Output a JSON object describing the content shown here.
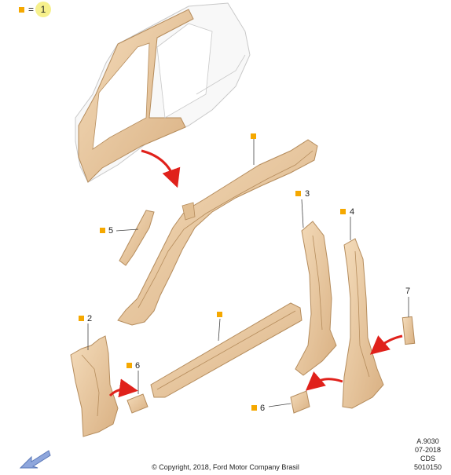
{
  "legend": {
    "equals": "=",
    "qty": "1"
  },
  "callouts": [
    {
      "id": "c1",
      "num": ""
    },
    {
      "id": "c2",
      "num": "2"
    },
    {
      "id": "c3",
      "num": "3"
    },
    {
      "id": "c4",
      "num": "4"
    },
    {
      "id": "c5",
      "num": "5"
    },
    {
      "id": "c6a",
      "num": "6"
    },
    {
      "id": "c6b",
      "num": "6"
    },
    {
      "id": "c7",
      "num": "7"
    },
    {
      "id": "c8",
      "num": ""
    }
  ],
  "meta": {
    "code": "A.9030",
    "date": "07-2018",
    "source": "CDS",
    "ref": "5010150"
  },
  "copyright": "© Copyright, 2018, Ford Motor Company Brasil",
  "colors": {
    "accent": "#f5a800",
    "part_fill": "#e9c9a0",
    "part_stroke": "#b58c5c",
    "arrow": "#e0211b",
    "nav": "#8ea6dc"
  }
}
